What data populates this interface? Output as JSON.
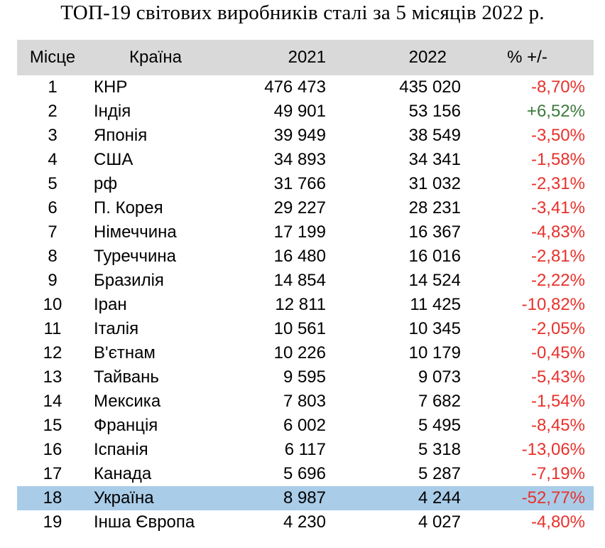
{
  "chart_data": {
    "type": "table",
    "title": "ТОП-19 світових виробників сталі за 5 місяців 2022 р.",
    "columns": [
      "Місце",
      "Країна",
      "2021",
      "2022",
      "% +/-"
    ],
    "highlight_row_color": "#a9cce8",
    "header_color": "#d9d9d9",
    "negative_color": "#e8312b",
    "positive_color": "#3c7a3c",
    "rows": [
      {
        "rank": "1",
        "country": "КНР",
        "y2021": "476 473",
        "y2022": "435 020",
        "pct": "-8,70%"
      },
      {
        "rank": "2",
        "country": "Індія",
        "y2021": "49 901",
        "y2022": "53 156",
        "pct": "+6,52%"
      },
      {
        "rank": "3",
        "country": "Японія",
        "y2021": "39 949",
        "y2022": "38 549",
        "pct": "-3,50%"
      },
      {
        "rank": "4",
        "country": "США",
        "y2021": "34 893",
        "y2022": "34 341",
        "pct": "-1,58%"
      },
      {
        "rank": "5",
        "country": "рф",
        "y2021": "31 766",
        "y2022": "31 032",
        "pct": "-2,31%"
      },
      {
        "rank": "6",
        "country": "П. Корея",
        "y2021": "29 227",
        "y2022": "28 231",
        "pct": "-3,41%"
      },
      {
        "rank": "7",
        "country": "Німеччина",
        "y2021": "17 199",
        "y2022": "16 367",
        "pct": "-4,83%"
      },
      {
        "rank": "8",
        "country": "Туреччина",
        "y2021": "16 480",
        "y2022": "16 016",
        "pct": "-2,81%"
      },
      {
        "rank": "9",
        "country": "Бразилія",
        "y2021": "14 854",
        "y2022": "14 524",
        "pct": "-2,22%"
      },
      {
        "rank": "10",
        "country": "Іран",
        "y2021": "12 811",
        "y2022": "11 425",
        "pct": "-10,82%"
      },
      {
        "rank": "11",
        "country": "Італія",
        "y2021": "10 561",
        "y2022": "10 345",
        "pct": "-2,05%"
      },
      {
        "rank": "12",
        "country": "В'єтнам",
        "y2021": "10 226",
        "y2022": "10 179",
        "pct": "-0,45%"
      },
      {
        "rank": "13",
        "country": "Тайвань",
        "y2021": "9 595",
        "y2022": "9 073",
        "pct": "-5,43%"
      },
      {
        "rank": "14",
        "country": "Мексика",
        "y2021": "7 803",
        "y2022": "7 682",
        "pct": "-1,54%"
      },
      {
        "rank": "15",
        "country": "Франція",
        "y2021": "6 002",
        "y2022": "5 495",
        "pct": "-8,45%"
      },
      {
        "rank": "16",
        "country": "Іспанія",
        "y2021": "6 117",
        "y2022": "5 318",
        "pct": "-13,06%"
      },
      {
        "rank": "17",
        "country": "Канада",
        "y2021": "5 696",
        "y2022": "5 287",
        "pct": "-7,19%"
      },
      {
        "rank": "18",
        "country": "Україна",
        "y2021": "8 987",
        "y2022": "4 244",
        "pct": "-52,77%",
        "highlight": true
      },
      {
        "rank": "19",
        "country": "Інша Європа",
        "y2021": "4 230",
        "y2022": "4 027",
        "pct": "-4,80%"
      }
    ]
  }
}
